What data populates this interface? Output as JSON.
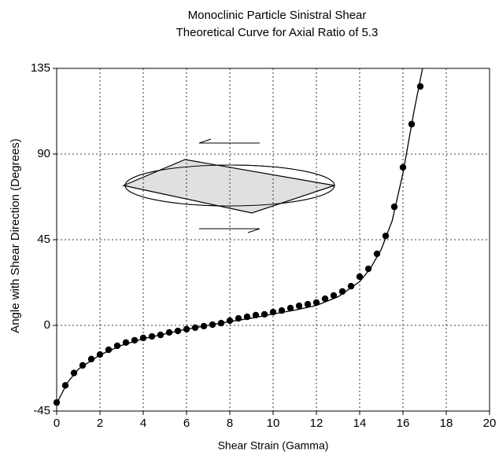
{
  "chart_data": {
    "type": "scatter",
    "title": [
      "Monoclinic Particle    Sinistral Shear",
      "Theoretical Curve for Axial Ratio of 5.3"
    ],
    "x_label": "Shear Strain (Gamma)",
    "y_label": "Angle with Shear Direction (Degrees)",
    "xlim": [
      0,
      20
    ],
    "xticks": [
      0,
      2,
      4,
      6,
      8,
      10,
      12,
      14,
      16,
      18,
      20
    ],
    "ylim": [
      -45,
      135
    ],
    "yticks": [
      -45,
      0,
      45,
      90,
      135
    ],
    "grid": true,
    "series": [
      {
        "kind": "points",
        "color": "#000000",
        "x": [
          0,
          0.4,
          0.8,
          1.2,
          1.6,
          2.0,
          2.4,
          2.8,
          3.2,
          3.6,
          4.0,
          4.4,
          4.8,
          5.2,
          5.6,
          6.0,
          6.4,
          6.8,
          7.2,
          7.6,
          8.0,
          8.4,
          8.8,
          9.2,
          9.6,
          10.0,
          10.4,
          10.8,
          11.2,
          11.6,
          12.0,
          12.4,
          12.8,
          13.2,
          13.6,
          14.0,
          14.4,
          14.8,
          15.2,
          15.6,
          16.0,
          16.4,
          16.8
        ],
        "values": [
          -40.5,
          -31.5,
          -25,
          -21,
          -17.7,
          -15.3,
          -12.8,
          -10.7,
          -9,
          -7.8,
          -6.6,
          -5.8,
          -5,
          -3.7,
          -2.9,
          -2,
          -1.2,
          -0.4,
          0.4,
          1.2,
          2.5,
          3.7,
          4.5,
          5.4,
          5.8,
          7,
          7.8,
          9.1,
          10.3,
          11.1,
          12,
          14,
          15.7,
          17.8,
          20.6,
          25.6,
          29.7,
          37.6,
          47,
          62.3,
          83,
          105.7,
          125.5
        ]
      },
      {
        "kind": "line",
        "color": "#000000",
        "x": [
          0,
          0.5,
          1,
          2,
          3,
          4,
          5,
          6,
          7,
          8,
          9,
          10,
          11,
          12,
          13,
          14,
          14.5,
          15,
          15.5,
          16,
          16.5,
          16.9
        ],
        "values": [
          -41,
          -30,
          -23,
          -15.5,
          -10.5,
          -7,
          -4.5,
          -2,
          0,
          2,
          3.8,
          6,
          8,
          10.5,
          15,
          23,
          30,
          40,
          55,
          80,
          112,
          135
        ]
      }
    ]
  }
}
